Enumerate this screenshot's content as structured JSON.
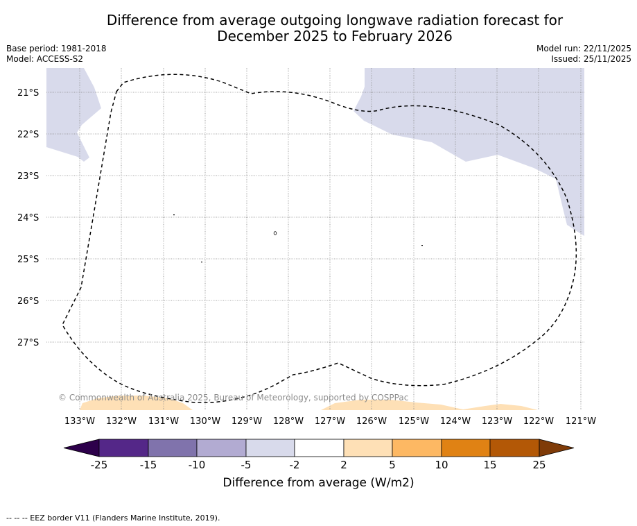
{
  "title": {
    "line1": "Difference from average outgoing longwave radiation forecast for",
    "line2": "December 2025 to February 2026"
  },
  "meta": {
    "base_period": "Base period: 1981-2018",
    "model": "Model: ACCESS-S2",
    "model_run": "Model run: 22/11/2025",
    "issued": "Issued: 25/11/2025"
  },
  "map": {
    "lat_labels": [
      "21°S",
      "22°S",
      "23°S",
      "24°S",
      "25°S",
      "26°S",
      "27°S"
    ],
    "lon_labels": [
      "133°W",
      "132°W",
      "131°W",
      "130°W",
      "129°W",
      "128°W",
      "127°W",
      "126°W",
      "125°W",
      "124°W",
      "123°W",
      "122°W",
      "121°W"
    ],
    "copyright": "© Commonwealth of Australia 2025, Bureau of Meteorology, supported by COSPPac"
  },
  "colorbar": {
    "label": "Difference from average (W/m2)",
    "ticks": [
      "-25",
      "-15",
      "-10",
      "-5",
      "-2",
      "2",
      "5",
      "10",
      "15",
      "25"
    ],
    "colors": [
      "#2d004b",
      "#542788",
      "#8073ac",
      "#b2abd2",
      "#d8daeb",
      "#ffffff",
      "#fee0b6",
      "#fdb863",
      "#e08214",
      "#b35806",
      "#7f3b08"
    ]
  },
  "footer": "--  --  -- EEZ border V11 (Flanders Marine Institute, 2019)."
}
